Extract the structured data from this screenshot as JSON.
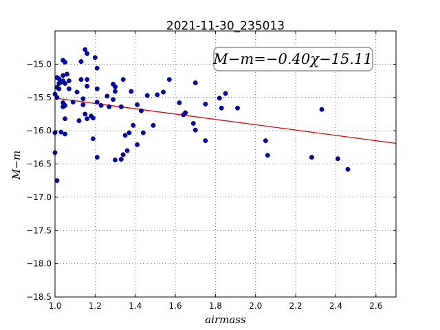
{
  "chart_data": {
    "type": "scatter",
    "title": "2021-11-30_235013",
    "xlabel": "airmass",
    "ylabel": "M−m",
    "xlim": [
      1.0,
      2.7
    ],
    "ylim": [
      -18.5,
      -14.5
    ],
    "y_inverted": true,
    "grid": true,
    "xticks": [
      "1.0",
      "1.2",
      "1.4",
      "1.6",
      "1.8",
      "2.0",
      "2.2",
      "2.4",
      "2.6"
    ],
    "yticks": [
      "−15.0",
      "−15.5",
      "−16.0",
      "−16.5",
      "−17.0",
      "−17.5",
      "−18.0",
      "−18.5"
    ],
    "annotation": "M−m=−0.40χ−15.11",
    "fit": {
      "slope": -0.4,
      "intercept": -15.11,
      "color": "#e00000"
    },
    "point_color": "#0000cc",
    "points": [
      [
        1.0,
        -15.45
      ],
      [
        1.0,
        -16.03
      ],
      [
        1.0,
        -16.33
      ],
      [
        1.01,
        -15.2
      ],
      [
        1.01,
        -15.35
      ],
      [
        1.01,
        -15.5
      ],
      [
        1.01,
        -16.75
      ],
      [
        1.02,
        -15.22
      ],
      [
        1.02,
        -15.29
      ],
      [
        1.02,
        -15.37
      ],
      [
        1.03,
        -15.27
      ],
      [
        1.03,
        -16.02
      ],
      [
        1.04,
        -14.94
      ],
      [
        1.04,
        -15.17
      ],
      [
        1.04,
        -15.25
      ],
      [
        1.04,
        -15.58
      ],
      [
        1.04,
        -15.64
      ],
      [
        1.05,
        -14.97
      ],
      [
        1.05,
        -15.82
      ],
      [
        1.05,
        -16.05
      ],
      [
        1.05,
        -15.29
      ],
      [
        1.05,
        -15.62
      ],
      [
        1.06,
        -15.15
      ],
      [
        1.07,
        -15.25
      ],
      [
        1.07,
        -15.37
      ],
      [
        1.09,
        -15.57
      ],
      [
        1.11,
        -15.42
      ],
      [
        1.12,
        -15.85
      ],
      [
        1.13,
        -14.96
      ],
      [
        1.13,
        -15.23
      ],
      [
        1.14,
        -15.52
      ],
      [
        1.14,
        -15.61
      ],
      [
        1.15,
        -15.75
      ],
      [
        1.15,
        -14.78
      ],
      [
        1.16,
        -14.84
      ],
      [
        1.16,
        -15.23
      ],
      [
        1.16,
        -15.33
      ],
      [
        1.16,
        -15.82
      ],
      [
        1.18,
        -15.78
      ],
      [
        1.19,
        -15.81
      ],
      [
        1.19,
        -16.12
      ],
      [
        1.2,
        -14.9
      ],
      [
        1.21,
        -15.06
      ],
      [
        1.21,
        -15.37
      ],
      [
        1.21,
        -15.57
      ],
      [
        1.21,
        -16.4
      ],
      [
        1.23,
        -15.62
      ],
      [
        1.26,
        -15.48
      ],
      [
        1.27,
        -15.64
      ],
      [
        1.29,
        -15.3
      ],
      [
        1.29,
        -15.53
      ],
      [
        1.3,
        -15.34
      ],
      [
        1.3,
        -15.41
      ],
      [
        1.3,
        -16.44
      ],
      [
        1.33,
        -16.43
      ],
      [
        1.33,
        -15.64
      ],
      [
        1.34,
        -15.23
      ],
      [
        1.34,
        -16.36
      ],
      [
        1.35,
        -16.07
      ],
      [
        1.36,
        -16.3
      ],
      [
        1.37,
        -16.03
      ],
      [
        1.38,
        -15.41
      ],
      [
        1.39,
        -15.92
      ],
      [
        1.41,
        -15.61
      ],
      [
        1.41,
        -16.21
      ],
      [
        1.43,
        -15.7
      ],
      [
        1.44,
        -16.03
      ],
      [
        1.46,
        -15.47
      ],
      [
        1.49,
        -15.92
      ],
      [
        1.51,
        -15.46
      ],
      [
        1.54,
        -15.42
      ],
      [
        1.57,
        -15.23
      ],
      [
        1.62,
        -15.58
      ],
      [
        1.64,
        -15.76
      ],
      [
        1.65,
        -15.73
      ],
      [
        1.69,
        -15.89
      ],
      [
        1.7,
        -15.28
      ],
      [
        1.7,
        -15.99
      ],
      [
        1.75,
        -15.6
      ],
      [
        1.75,
        -16.15
      ],
      [
        1.82,
        -15.51
      ],
      [
        1.83,
        -15.66
      ],
      [
        1.85,
        -15.44
      ],
      [
        1.91,
        -15.66
      ],
      [
        2.05,
        -16.15
      ],
      [
        2.06,
        -16.37
      ],
      [
        2.28,
        -16.4
      ],
      [
        2.33,
        -15.68
      ],
      [
        2.41,
        -16.42
      ],
      [
        2.46,
        -16.58
      ]
    ]
  }
}
